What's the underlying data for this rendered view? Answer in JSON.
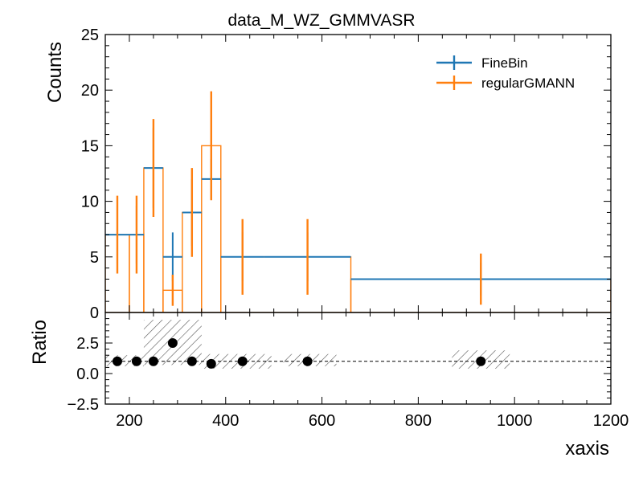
{
  "chart_data": {
    "type": "histogram-with-ratio",
    "title": "data_M_WZ_GMMVASR",
    "xlabel": "xaxis",
    "ylabel_main": "Counts",
    "ylabel_ratio": "Ratio",
    "xlim": [
      150,
      1200
    ],
    "ylim_main": [
      0,
      25
    ],
    "ylim_ratio": [
      -2.5,
      5
    ],
    "x_ticks": [
      200,
      400,
      600,
      800,
      1000,
      1200
    ],
    "y_ticks_main": [
      0,
      5,
      10,
      15,
      20,
      25
    ],
    "y_ticks_ratio": [
      -2.5,
      0.0,
      2.5
    ],
    "x_tick_labels": [
      "200",
      "400",
      "600",
      "800",
      "1000",
      "1200"
    ],
    "y_tick_labels_main": [
      "0",
      "5",
      "10",
      "15",
      "20",
      "25"
    ],
    "y_tick_labels_ratio": [
      "−2.5",
      "0.0",
      "2.5"
    ],
    "legend_position": "top-right",
    "series": [
      {
        "name": "FineBin",
        "color": "#1f77b4",
        "style": "errorbar",
        "x": [
          175,
          215,
          250,
          290,
          330,
          370,
          435,
          570,
          930
        ],
        "xerr": [
          25,
          15,
          20,
          20,
          20,
          20,
          45,
          90,
          270
        ],
        "y": [
          7,
          7,
          13,
          5,
          9,
          12,
          5,
          5,
          3
        ],
        "yerr": [
          2.6,
          2.6,
          3.6,
          2.2,
          3.0,
          1.8,
          2.2,
          2.2,
          1.5
        ]
      },
      {
        "name": "regularGMANN",
        "color": "#ff7f0e",
        "style": "step-errorbar",
        "edges": [
          150,
          200,
          230,
          270,
          310,
          350,
          390,
          660,
          1200
        ],
        "values": [
          7,
          7,
          13,
          2,
          9,
          15,
          5,
          3
        ],
        "points_x": [
          175,
          215,
          250,
          290,
          330,
          370,
          435,
          570,
          930
        ],
        "points_y": [
          7,
          7,
          13,
          2,
          9,
          15,
          5,
          5,
          3
        ],
        "points_yerr": [
          3.5,
          3.5,
          4.4,
          1.4,
          4.0,
          4.9,
          3.4,
          3.4,
          2.3
        ]
      }
    ],
    "ratio": {
      "x": [
        175,
        215,
        250,
        290,
        330,
        370,
        435,
        570,
        930
      ],
      "y": [
        1.0,
        1.0,
        1.0,
        2.5,
        1.0,
        0.8,
        1.0,
        1.0,
        1.0
      ],
      "band_edges": [
        [
          150,
          230
        ],
        [
          230,
          350
        ],
        [
          350,
          495
        ],
        [
          520,
          630
        ],
        [
          870,
          990
        ]
      ],
      "band_low": [
        0.6,
        0.7,
        0.4,
        0.6,
        0.4
      ],
      "band_high": [
        1.5,
        4.4,
        1.6,
        1.6,
        1.9
      ],
      "reference_line": 1.0
    }
  }
}
